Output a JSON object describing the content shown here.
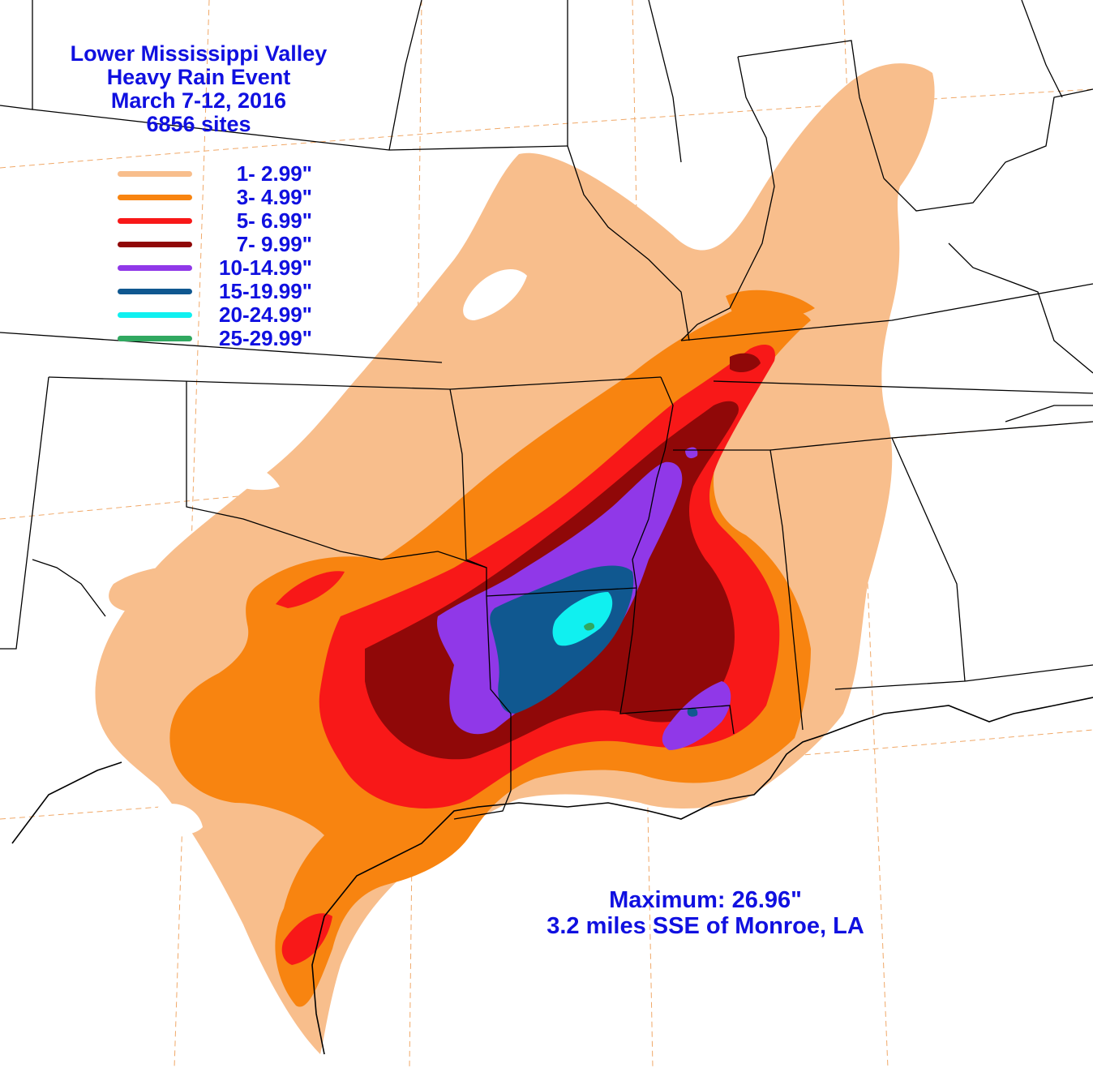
{
  "title": {
    "line1": "Lower Mississippi Valley",
    "line2": "Heavy Rain Event",
    "line3": "March 7-12, 2016",
    "line4": "6856 sites"
  },
  "legend": [
    {
      "label": "1- 2.99\"",
      "color": "#f8be8c"
    },
    {
      "label": "3- 4.99\"",
      "color": "#f88410"
    },
    {
      "label": "5- 6.99\"",
      "color": "#f81818"
    },
    {
      "label": "7- 9.99\"",
      "color": "#900808"
    },
    {
      "label": "10-14.99\"",
      "color": "#9038e8"
    },
    {
      "label": "15-19.99\"",
      "color": "#105890"
    },
    {
      "label": "20-24.99\"",
      "color": "#10f0f0"
    },
    {
      "label": "25-29.99\"",
      "color": "#30a860"
    }
  ],
  "maximum": {
    "value_line": "Maximum:  26.96\"",
    "location_line": "3.2 miles SSE of Monroe, LA"
  },
  "colors": {
    "text": "#1010e0",
    "state_lines": "#000000",
    "graticule": "#f0a868",
    "background": "#ffffff"
  }
}
